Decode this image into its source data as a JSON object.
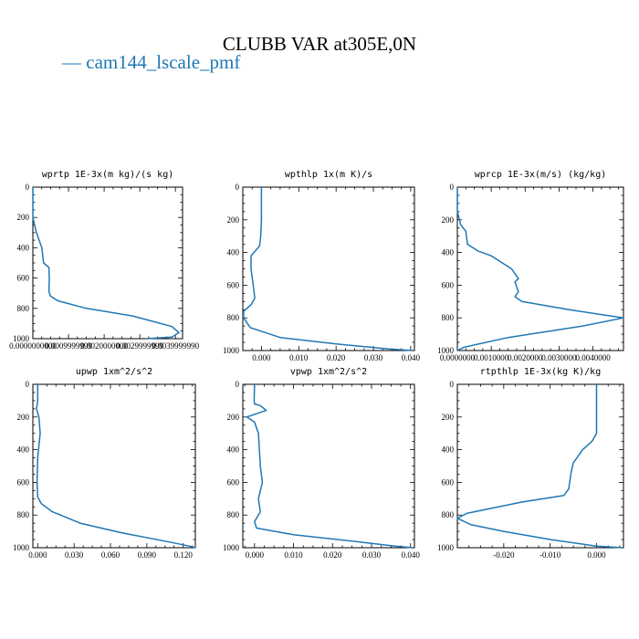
{
  "title": "CLUBB VAR at305E,0N",
  "legend": {
    "label": "cam144_lscale_pmf",
    "color": "#1f77b4"
  },
  "chart_data": [
    {
      "type": "line",
      "title": "wprtp  1E-3x(m kg)/(s kg)",
      "xlim": [
        0.0,
        0.0042
      ],
      "ylim": [
        1000,
        0
      ],
      "x_ticks": [
        0.0,
        0.001,
        0.002,
        0.003,
        0.004
      ],
      "x_tick_labels": [
        "0.0000000000",
        "0.0009999999",
        "0.0020000000",
        "0.0029999999",
        "0.0039999990"
      ],
      "y_ticks": [
        0,
        200,
        400,
        600,
        800,
        1000
      ],
      "series": [
        {
          "name": "cam144_lscale_pmf",
          "x": [
            0.0,
            0.0,
            0.0001,
            0.00025,
            0.0003,
            0.00045,
            0.00046,
            0.00045,
            0.0005,
            0.0007,
            0.0015,
            0.0028,
            0.0039,
            0.0041,
            0.0039,
            0.0032
          ],
          "y": [
            0,
            200,
            300,
            400,
            500,
            530,
            600,
            690,
            720,
            750,
            800,
            850,
            920,
            960,
            990,
            1000
          ]
        }
      ]
    },
    {
      "type": "line",
      "title": "wpthlp  1x(m K)/s",
      "xlim": [
        -0.005,
        0.041
      ],
      "ylim": [
        1000,
        0
      ],
      "x_ticks": [
        0.0,
        0.01,
        0.02,
        0.03,
        0.04
      ],
      "x_tick_labels": [
        "0.000",
        "0.010",
        "0.020",
        "0.030",
        "0.040"
      ],
      "y_ticks": [
        0,
        200,
        400,
        600,
        800,
        1000
      ],
      "series": [
        {
          "name": "cam144_lscale_pmf",
          "x": [
            0.0,
            0.0,
            -0.0002,
            -0.0005,
            -0.0028,
            -0.0028,
            -0.0022,
            -0.0018,
            -0.0028,
            -0.0048,
            -0.0048,
            -0.003,
            0.005,
            0.02,
            0.034,
            0.0405
          ],
          "y": [
            0,
            200,
            300,
            360,
            420,
            500,
            600,
            680,
            720,
            760,
            800,
            860,
            920,
            960,
            990,
            1000
          ]
        }
      ]
    },
    {
      "type": "line",
      "title": "wprcp  1E-3x(m/s) (kg/kg)",
      "xlim": [
        0.0,
        0.0049
      ],
      "ylim": [
        1000,
        0
      ],
      "x_ticks": [
        0.0,
        0.001,
        0.002,
        0.003,
        0.004
      ],
      "x_tick_labels": [
        "0.0000000",
        "0.0010000",
        "0.0020000",
        "0.0030000",
        "0.0040000"
      ],
      "y_ticks": [
        0,
        200,
        400,
        600,
        800,
        1000
      ],
      "series": [
        {
          "name": "cam144_lscale_pmf",
          "x": [
            0.0,
            0.0,
            0.0001,
            0.00025,
            0.0003,
            0.0006,
            0.001,
            0.0016,
            0.0018,
            0.0017,
            0.0018,
            0.0017,
            0.0019,
            0.0033,
            0.0049,
            0.0037,
            0.0015,
            0.0002,
            0.0
          ],
          "y": [
            0,
            150,
            230,
            270,
            350,
            390,
            420,
            500,
            560,
            580,
            640,
            670,
            700,
            750,
            800,
            850,
            920,
            980,
            1000
          ]
        }
      ]
    },
    {
      "type": "line",
      "title": "upwp  1xm^2/s^2",
      "xlim": [
        -0.004,
        0.13
      ],
      "ylim": [
        1000,
        0
      ],
      "x_ticks": [
        0.0,
        0.03,
        0.06,
        0.09,
        0.12
      ],
      "x_tick_labels": [
        "0.000",
        "0.030",
        "0.060",
        "0.090",
        "0.120"
      ],
      "y_ticks": [
        0,
        200,
        400,
        600,
        800,
        1000
      ],
      "series": [
        {
          "name": "cam144_lscale_pmf",
          "x": [
            0.0,
            0.0,
            -0.001,
            0.001,
            0.002,
            0.0,
            -0.0005,
            0.0,
            0.003,
            0.012,
            0.035,
            0.07,
            0.105,
            0.125,
            0.13
          ],
          "y": [
            0,
            100,
            150,
            200,
            300,
            450,
            600,
            690,
            730,
            780,
            850,
            910,
            960,
            990,
            1000
          ]
        }
      ]
    },
    {
      "type": "line",
      "title": "vpwp  1xm^2/s^2",
      "xlim": [
        -0.003,
        0.041
      ],
      "ylim": [
        1000,
        0
      ],
      "x_ticks": [
        0.0,
        0.01,
        0.02,
        0.03,
        0.04
      ],
      "x_tick_labels": [
        "0.000",
        "0.010",
        "0.020",
        "0.030",
        "0.040"
      ],
      "y_ticks": [
        0,
        200,
        400,
        600,
        800,
        1000
      ],
      "series": [
        {
          "name": "cam144_lscale_pmf",
          "x": [
            0.0,
            -0.0001,
            0.0,
            0.0015,
            0.003,
            -0.002,
            0.0,
            0.001,
            0.0015,
            0.002,
            0.0015,
            0.001,
            0.0015,
            0.0,
            0.0005,
            0.01,
            0.025,
            0.036,
            0.0405
          ],
          "y": [
            0,
            100,
            120,
            130,
            160,
            200,
            230,
            300,
            500,
            600,
            650,
            700,
            780,
            840,
            880,
            920,
            960,
            990,
            1000
          ]
        }
      ]
    },
    {
      "type": "line",
      "title": "rtpthlp  1E-3x(kg K)/kg",
      "xlim": [
        -0.03,
        0.0058
      ],
      "ylim": [
        1000,
        0
      ],
      "x_ticks": [
        -0.02,
        -0.01,
        0.0
      ],
      "x_tick_labels": [
        "-0.020",
        "-0.010",
        "0.000"
      ],
      "y_ticks": [
        0,
        200,
        400,
        600,
        800,
        1000
      ],
      "series": [
        {
          "name": "cam144_lscale_pmf",
          "x": [
            0.0,
            0.0,
            -0.001,
            -0.003,
            -0.004,
            -0.005,
            -0.0055,
            -0.006,
            -0.007,
            -0.016,
            -0.028,
            -0.03,
            -0.027,
            -0.02,
            -0.01,
            0.0,
            0.0055
          ],
          "y": [
            0,
            300,
            350,
            400,
            440,
            480,
            540,
            640,
            680,
            720,
            790,
            820,
            860,
            900,
            950,
            990,
            1000
          ]
        }
      ]
    }
  ]
}
